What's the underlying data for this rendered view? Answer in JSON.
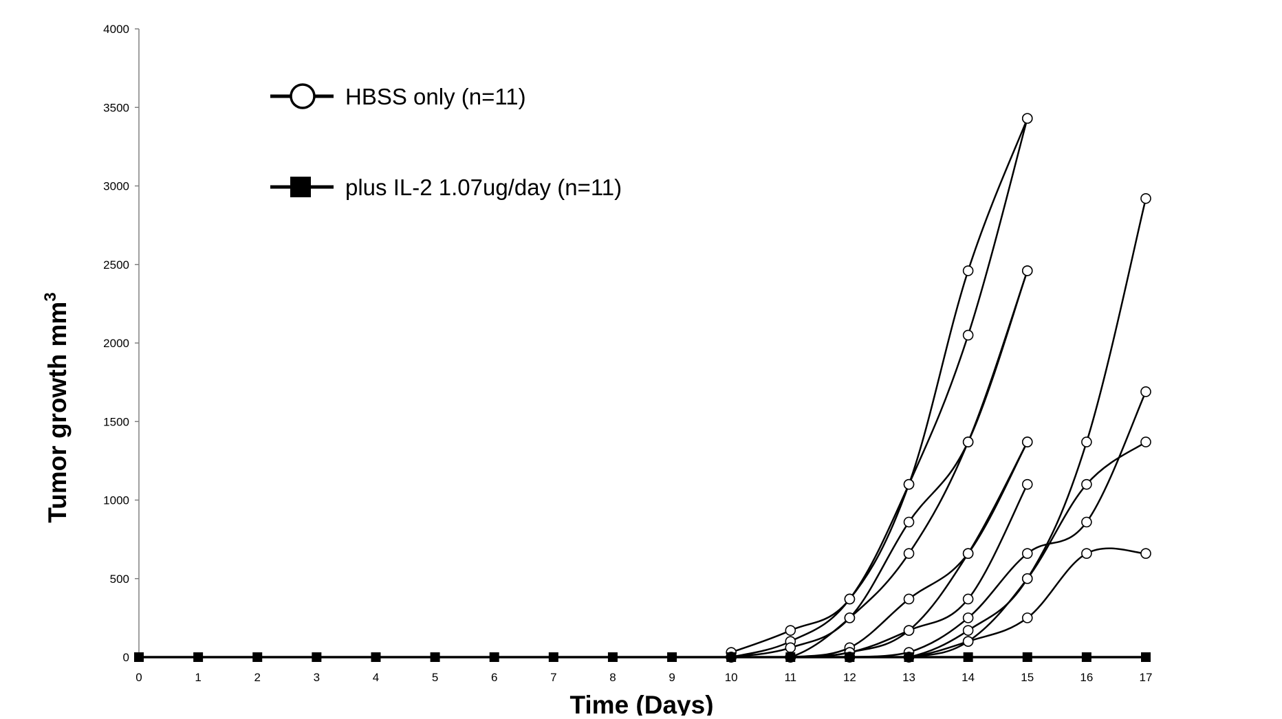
{
  "chart_data": {
    "type": "line",
    "title": "",
    "xlabel": "Time (Days)",
    "ylabel": "Tumor growth mm",
    "ylabel_superscript": "3",
    "xlim": [
      0,
      17
    ],
    "ylim": [
      0,
      4000
    ],
    "x_ticks": [
      "0",
      "1",
      "2",
      "3",
      "4",
      "5",
      "6",
      "7",
      "8",
      "9",
      "10",
      "11",
      "12",
      "13",
      "14",
      "15",
      "16",
      "17"
    ],
    "y_ticks": [
      "0",
      "500",
      "1000",
      "1500",
      "2000",
      "2500",
      "3000",
      "3500",
      "4000"
    ],
    "grid": false,
    "legend_position": "top-left",
    "legend": [
      {
        "label": "HBSS only (n=11)",
        "marker": "open-circle"
      },
      {
        "label": "plus IL-2 1.07ug/day (n=11)",
        "marker": "filled-square"
      }
    ],
    "series": [
      {
        "group": "HBSS",
        "marker": "open-circle",
        "x": [
          10,
          11,
          12,
          13,
          14,
          15
        ],
        "y": [
          30,
          170,
          370,
          1100,
          2460,
          3430
        ]
      },
      {
        "group": "HBSS",
        "marker": "open-circle",
        "x": [
          10,
          11,
          12,
          13,
          14,
          15
        ],
        "y": [
          0,
          100,
          370,
          1100,
          2050,
          3430
        ]
      },
      {
        "group": "HBSS",
        "marker": "open-circle",
        "x": [
          10,
          11,
          12,
          13,
          14,
          15
        ],
        "y": [
          0,
          60,
          250,
          860,
          1370,
          2460
        ]
      },
      {
        "group": "HBSS",
        "marker": "open-circle",
        "x": [
          10,
          11,
          12,
          13,
          14,
          15
        ],
        "y": [
          0,
          0,
          250,
          660,
          1370,
          2460
        ]
      },
      {
        "group": "HBSS",
        "marker": "open-circle",
        "x": [
          10,
          11,
          12,
          13,
          14,
          15
        ],
        "y": [
          0,
          0,
          60,
          370,
          660,
          1370
        ]
      },
      {
        "group": "HBSS",
        "marker": "open-circle",
        "x": [
          10,
          11,
          12,
          13,
          14,
          15
        ],
        "y": [
          0,
          0,
          30,
          170,
          660,
          1370
        ]
      },
      {
        "group": "HBSS",
        "marker": "open-circle",
        "x": [
          10,
          11,
          12,
          13,
          14,
          15
        ],
        "y": [
          0,
          0,
          30,
          170,
          370,
          1100
        ]
      },
      {
        "group": "HBSS",
        "marker": "open-circle",
        "x": [
          11,
          12,
          13,
          14,
          15,
          16,
          17
        ],
        "y": [
          0,
          0,
          30,
          250,
          660,
          860,
          1690
        ]
      },
      {
        "group": "HBSS",
        "marker": "open-circle",
        "x": [
          11,
          12,
          13,
          14,
          15,
          16,
          17
        ],
        "y": [
          0,
          0,
          0,
          170,
          500,
          1370,
          2920
        ]
      },
      {
        "group": "HBSS",
        "marker": "open-circle",
        "x": [
          11,
          12,
          13,
          14,
          15,
          16,
          17
        ],
        "y": [
          0,
          0,
          0,
          100,
          500,
          1100,
          1370
        ]
      },
      {
        "group": "HBSS",
        "marker": "open-circle",
        "x": [
          11,
          12,
          13,
          14,
          15,
          16,
          17
        ],
        "y": [
          0,
          0,
          0,
          100,
          250,
          660,
          660
        ]
      },
      {
        "group": "IL-2",
        "marker": "filled-square",
        "x": [
          0,
          1,
          2,
          3,
          4,
          5,
          6,
          7,
          8,
          9,
          10,
          11,
          12,
          13,
          14,
          15,
          16,
          17
        ],
        "y": [
          0,
          0,
          0,
          0,
          0,
          0,
          0,
          0,
          0,
          0,
          0,
          0,
          0,
          0,
          0,
          0,
          0,
          0
        ]
      }
    ]
  }
}
